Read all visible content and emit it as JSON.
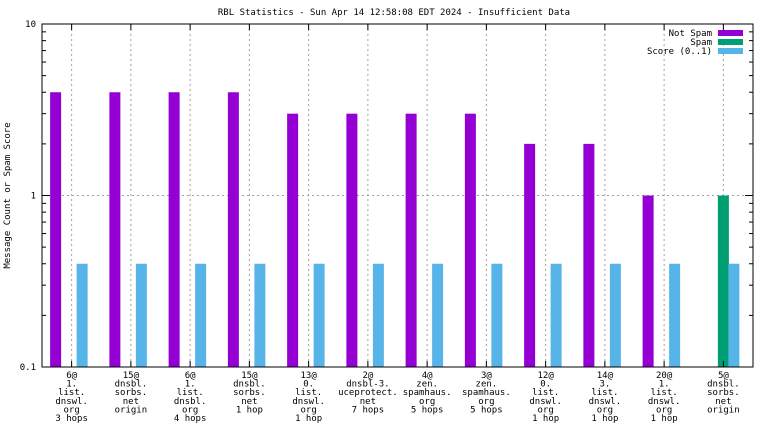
{
  "chart_data": {
    "type": "bar",
    "title": "RBL Statistics - Sun Apr 14 12:58:08 EDT 2024 - Insufficient Data",
    "xlabel": "",
    "ylabel": "Message Count or Spam Score",
    "yscale": "log",
    "ylim": [
      0.1,
      10
    ],
    "yticks": [
      "0.1",
      "1",
      "10"
    ],
    "grid": true,
    "legend_position": "top-right",
    "categories": [
      [
        "6@",
        "1.",
        "list.",
        "dnswl.",
        "org",
        "3 hops"
      ],
      [
        "15@",
        "dnsbl.",
        "sorbs.",
        "net",
        "origin"
      ],
      [
        "6@",
        "1.",
        "list.",
        "dnsbl.",
        "org",
        "4 hops"
      ],
      [
        "15@",
        "dnsbl.",
        "sorbs.",
        "net",
        "1 hop"
      ],
      [
        "13@",
        "0.",
        "list.",
        "dnswl.",
        "org",
        "1 hop"
      ],
      [
        "2@",
        "dnsbl-3.",
        "uceprotect.",
        "net",
        "7 hops"
      ],
      [
        "4@",
        "zen.",
        "spamhaus.",
        "org",
        "5 hops"
      ],
      [
        "3@",
        "zen.",
        "spamhaus.",
        "org",
        "5 hops"
      ],
      [
        "12@",
        "0.",
        "list.",
        "dnswl.",
        "org",
        "1 hop"
      ],
      [
        "14@",
        "3.",
        "list.",
        "dnswl.",
        "org",
        "1 hop"
      ],
      [
        "20@",
        "1.",
        "list.",
        "dnswl.",
        "org",
        "1 hop"
      ],
      [
        "5@",
        "dnsbl.",
        "sorbs.",
        "net",
        "origin"
      ]
    ],
    "series": [
      {
        "name": "Not Spam",
        "color": "#9400d3",
        "values": [
          4,
          4,
          4,
          4,
          3,
          3,
          3,
          3,
          2,
          2,
          1,
          null
        ]
      },
      {
        "name": "Spam",
        "color": "#009e73",
        "values": [
          null,
          null,
          null,
          null,
          null,
          null,
          null,
          null,
          null,
          null,
          null,
          1
        ]
      },
      {
        "name": "Score (0..1)",
        "color": "#56b4e9",
        "values": [
          0.4,
          0.4,
          0.4,
          0.4,
          0.4,
          0.4,
          0.4,
          0.4,
          0.4,
          0.4,
          0.4,
          0.4
        ]
      }
    ]
  }
}
